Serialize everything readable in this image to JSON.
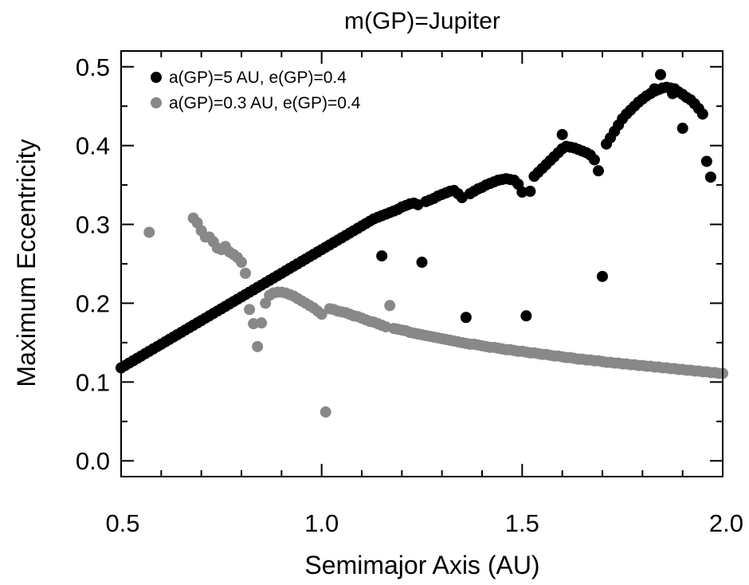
{
  "chart_data": {
    "type": "scatter",
    "title": "m(GP)=Jupiter",
    "xlabel": "Semimajor Axis (AU)",
    "ylabel": "Maximum Eccentricity",
    "xlim": [
      0.5,
      2.0
    ],
    "ylim": [
      -0.02,
      0.52
    ],
    "xticks": [
      0.5,
      1.0,
      1.5,
      2.0
    ],
    "xtick_labels": [
      "0.5",
      "1.0",
      "1.5",
      "2.0"
    ],
    "yticks": [
      0.0,
      0.1,
      0.2,
      0.3,
      0.4,
      0.5
    ],
    "ytick_labels": [
      "0.0",
      "0.1",
      "0.2",
      "0.3",
      "0.4",
      "0.5"
    ],
    "grid": false,
    "legend_position": "top-left",
    "series": [
      {
        "name": "a(GP)=5 AU, e(GP)=0.4",
        "color": "#000000",
        "points": [
          [
            0.5,
            0.118
          ],
          [
            0.51,
            0.121
          ],
          [
            0.52,
            0.124
          ],
          [
            0.53,
            0.127
          ],
          [
            0.54,
            0.13
          ],
          [
            0.55,
            0.133
          ],
          [
            0.56,
            0.136
          ],
          [
            0.57,
            0.139
          ],
          [
            0.58,
            0.142
          ],
          [
            0.59,
            0.145
          ],
          [
            0.6,
            0.148
          ],
          [
            0.61,
            0.151
          ],
          [
            0.62,
            0.154
          ],
          [
            0.63,
            0.157
          ],
          [
            0.64,
            0.16
          ],
          [
            0.65,
            0.163
          ],
          [
            0.66,
            0.166
          ],
          [
            0.67,
            0.169
          ],
          [
            0.68,
            0.172
          ],
          [
            0.69,
            0.175
          ],
          [
            0.7,
            0.178
          ],
          [
            0.71,
            0.181
          ],
          [
            0.72,
            0.184
          ],
          [
            0.73,
            0.187
          ],
          [
            0.74,
            0.19
          ],
          [
            0.75,
            0.193
          ],
          [
            0.76,
            0.196
          ],
          [
            0.77,
            0.199
          ],
          [
            0.78,
            0.202
          ],
          [
            0.79,
            0.205
          ],
          [
            0.8,
            0.208
          ],
          [
            0.81,
            0.211
          ],
          [
            0.82,
            0.214
          ],
          [
            0.83,
            0.217
          ],
          [
            0.84,
            0.22
          ],
          [
            0.85,
            0.223
          ],
          [
            0.86,
            0.226
          ],
          [
            0.87,
            0.229
          ],
          [
            0.88,
            0.232
          ],
          [
            0.89,
            0.235
          ],
          [
            0.9,
            0.238
          ],
          [
            0.91,
            0.241
          ],
          [
            0.92,
            0.244
          ],
          [
            0.93,
            0.247
          ],
          [
            0.94,
            0.25
          ],
          [
            0.95,
            0.253
          ],
          [
            0.96,
            0.256
          ],
          [
            0.97,
            0.259
          ],
          [
            0.98,
            0.262
          ],
          [
            0.99,
            0.265
          ],
          [
            1.0,
            0.268
          ],
          [
            1.01,
            0.271
          ],
          [
            1.02,
            0.274
          ],
          [
            1.03,
            0.277
          ],
          [
            1.04,
            0.28
          ],
          [
            1.05,
            0.283
          ],
          [
            1.06,
            0.286
          ],
          [
            1.07,
            0.289
          ],
          [
            1.08,
            0.292
          ],
          [
            1.09,
            0.295
          ],
          [
            1.1,
            0.298
          ],
          [
            1.11,
            0.301
          ],
          [
            1.12,
            0.304
          ],
          [
            1.13,
            0.307
          ],
          [
            1.14,
            0.309
          ],
          [
            1.15,
            0.311
          ],
          [
            1.16,
            0.313
          ],
          [
            1.17,
            0.315
          ],
          [
            1.18,
            0.317
          ],
          [
            1.19,
            0.319
          ],
          [
            1.2,
            0.322
          ],
          [
            1.21,
            0.324
          ],
          [
            1.22,
            0.326
          ],
          [
            1.23,
            0.327
          ],
          [
            1.24,
            0.325
          ],
          [
            1.26,
            0.329
          ],
          [
            1.27,
            0.331
          ],
          [
            1.28,
            0.333
          ],
          [
            1.29,
            0.336
          ],
          [
            1.3,
            0.338
          ],
          [
            1.31,
            0.34
          ],
          [
            1.32,
            0.342
          ],
          [
            1.33,
            0.343
          ],
          [
            1.34,
            0.339
          ],
          [
            1.35,
            0.334
          ],
          [
            1.37,
            0.339
          ],
          [
            1.38,
            0.342
          ],
          [
            1.39,
            0.345
          ],
          [
            1.4,
            0.347
          ],
          [
            1.41,
            0.35
          ],
          [
            1.42,
            0.352
          ],
          [
            1.43,
            0.354
          ],
          [
            1.44,
            0.356
          ],
          [
            1.45,
            0.357
          ],
          [
            1.46,
            0.358
          ],
          [
            1.47,
            0.357
          ],
          [
            1.48,
            0.356
          ],
          [
            1.49,
            0.351
          ],
          [
            1.5,
            0.341
          ],
          [
            1.52,
            0.342
          ],
          [
            1.53,
            0.361
          ],
          [
            1.54,
            0.366
          ],
          [
            1.55,
            0.371
          ],
          [
            1.56,
            0.376
          ],
          [
            1.57,
            0.381
          ],
          [
            1.58,
            0.386
          ],
          [
            1.59,
            0.391
          ],
          [
            1.6,
            0.396
          ],
          [
            1.61,
            0.399
          ],
          [
            1.62,
            0.398
          ],
          [
            1.63,
            0.397
          ],
          [
            1.64,
            0.395
          ],
          [
            1.65,
            0.393
          ],
          [
            1.66,
            0.391
          ],
          [
            1.67,
            0.388
          ],
          [
            1.68,
            0.382
          ],
          [
            1.69,
            0.368
          ],
          [
            1.71,
            0.402
          ],
          [
            1.72,
            0.41
          ],
          [
            1.73,
            0.418
          ],
          [
            1.74,
            0.426
          ],
          [
            1.75,
            0.434
          ],
          [
            1.76,
            0.44
          ],
          [
            1.77,
            0.445
          ],
          [
            1.78,
            0.45
          ],
          [
            1.79,
            0.455
          ],
          [
            1.8,
            0.459
          ],
          [
            1.81,
            0.463
          ],
          [
            1.82,
            0.466
          ],
          [
            1.83,
            0.469
          ],
          [
            1.84,
            0.471
          ],
          [
            1.85,
            0.473
          ],
          [
            1.86,
            0.474
          ],
          [
            1.87,
            0.473
          ],
          [
            1.88,
            0.472
          ],
          [
            1.89,
            0.468
          ],
          [
            1.9,
            0.465
          ],
          [
            1.91,
            0.461
          ],
          [
            1.92,
            0.458
          ],
          [
            1.93,
            0.453
          ],
          [
            1.94,
            0.447
          ],
          [
            1.95,
            0.44
          ],
          [
            1.96,
            0.38
          ],
          [
            1.97,
            0.36
          ],
          [
            1.15,
            0.26
          ],
          [
            1.25,
            0.252
          ],
          [
            1.36,
            0.182
          ],
          [
            1.51,
            0.184
          ],
          [
            1.6,
            0.414
          ],
          [
            1.7,
            0.234
          ],
          [
            1.83,
            0.472
          ],
          [
            1.845,
            0.49
          ],
          [
            1.875,
            0.466
          ],
          [
            1.9,
            0.422
          ]
        ]
      },
      {
        "name": "a(GP)=0.3 AU, e(GP)=0.4",
        "color": "#888888",
        "points": [
          [
            0.57,
            0.29
          ],
          [
            0.68,
            0.308
          ],
          [
            0.69,
            0.302
          ],
          [
            0.7,
            0.292
          ],
          [
            0.71,
            0.284
          ],
          [
            0.72,
            0.284
          ],
          [
            0.73,
            0.278
          ],
          [
            0.74,
            0.27
          ],
          [
            0.75,
            0.268
          ],
          [
            0.76,
            0.272
          ],
          [
            0.77,
            0.265
          ],
          [
            0.78,
            0.262
          ],
          [
            0.79,
            0.258
          ],
          [
            0.8,
            0.252
          ],
          [
            0.81,
            0.238
          ],
          [
            0.82,
            0.192
          ],
          [
            0.83,
            0.174
          ],
          [
            0.84,
            0.145
          ],
          [
            0.85,
            0.175
          ],
          [
            0.86,
            0.2
          ],
          [
            0.87,
            0.21
          ],
          [
            0.88,
            0.213
          ],
          [
            0.89,
            0.214
          ],
          [
            0.9,
            0.214
          ],
          [
            0.91,
            0.213
          ],
          [
            0.92,
            0.211
          ],
          [
            0.93,
            0.209
          ],
          [
            0.94,
            0.206
          ],
          [
            0.95,
            0.203
          ],
          [
            0.96,
            0.2
          ],
          [
            0.97,
            0.197
          ],
          [
            0.98,
            0.194
          ],
          [
            0.99,
            0.19
          ],
          [
            1.0,
            0.186
          ],
          [
            1.01,
            0.062
          ],
          [
            1.02,
            0.193
          ],
          [
            1.03,
            0.192
          ],
          [
            1.04,
            0.19
          ],
          [
            1.05,
            0.189
          ],
          [
            1.06,
            0.188
          ],
          [
            1.07,
            0.186
          ],
          [
            1.08,
            0.184
          ],
          [
            1.09,
            0.183
          ],
          [
            1.1,
            0.181
          ],
          [
            1.11,
            0.179
          ],
          [
            1.12,
            0.177
          ],
          [
            1.13,
            0.176
          ],
          [
            1.14,
            0.174
          ],
          [
            1.15,
            0.172
          ],
          [
            1.16,
            0.17
          ],
          [
            1.17,
            0.197
          ],
          [
            1.18,
            0.168
          ],
          [
            1.19,
            0.167
          ],
          [
            1.2,
            0.166
          ],
          [
            1.21,
            0.165
          ],
          [
            1.22,
            0.163
          ],
          [
            1.23,
            0.162
          ],
          [
            1.24,
            0.161
          ],
          [
            1.25,
            0.16
          ],
          [
            1.26,
            0.159
          ],
          [
            1.27,
            0.158
          ],
          [
            1.28,
            0.157
          ],
          [
            1.29,
            0.156
          ],
          [
            1.3,
            0.155
          ],
          [
            1.31,
            0.154
          ],
          [
            1.32,
            0.153
          ],
          [
            1.33,
            0.152
          ],
          [
            1.34,
            0.151
          ],
          [
            1.35,
            0.15
          ],
          [
            1.36,
            0.149
          ],
          [
            1.37,
            0.148
          ],
          [
            1.38,
            0.148
          ],
          [
            1.39,
            0.147
          ],
          [
            1.4,
            0.146
          ],
          [
            1.41,
            0.145
          ],
          [
            1.42,
            0.144
          ],
          [
            1.43,
            0.144
          ],
          [
            1.44,
            0.143
          ],
          [
            1.45,
            0.142
          ],
          [
            1.46,
            0.141
          ],
          [
            1.47,
            0.141
          ],
          [
            1.48,
            0.14
          ],
          [
            1.49,
            0.139
          ],
          [
            1.5,
            0.139
          ],
          [
            1.51,
            0.138
          ],
          [
            1.52,
            0.137
          ],
          [
            1.53,
            0.137
          ],
          [
            1.54,
            0.136
          ],
          [
            1.55,
            0.135
          ],
          [
            1.56,
            0.135
          ],
          [
            1.57,
            0.134
          ],
          [
            1.58,
            0.133
          ],
          [
            1.59,
            0.133
          ],
          [
            1.6,
            0.132
          ],
          [
            1.61,
            0.131
          ],
          [
            1.62,
            0.131
          ],
          [
            1.63,
            0.13
          ],
          [
            1.64,
            0.129
          ],
          [
            1.65,
            0.129
          ],
          [
            1.66,
            0.128
          ],
          [
            1.67,
            0.128
          ],
          [
            1.68,
            0.127
          ],
          [
            1.69,
            0.127
          ],
          [
            1.7,
            0.126
          ],
          [
            1.71,
            0.125
          ],
          [
            1.72,
            0.125
          ],
          [
            1.73,
            0.124
          ],
          [
            1.74,
            0.124
          ],
          [
            1.75,
            0.123
          ],
          [
            1.76,
            0.123
          ],
          [
            1.77,
            0.122
          ],
          [
            1.78,
            0.122
          ],
          [
            1.79,
            0.121
          ],
          [
            1.8,
            0.121
          ],
          [
            1.81,
            0.12
          ],
          [
            1.82,
            0.12
          ],
          [
            1.83,
            0.119
          ],
          [
            1.84,
            0.119
          ],
          [
            1.85,
            0.118
          ],
          [
            1.86,
            0.118
          ],
          [
            1.87,
            0.117
          ],
          [
            1.88,
            0.117
          ],
          [
            1.89,
            0.116
          ],
          [
            1.9,
            0.116
          ],
          [
            1.91,
            0.115
          ],
          [
            1.92,
            0.115
          ],
          [
            1.93,
            0.114
          ],
          [
            1.94,
            0.114
          ],
          [
            1.95,
            0.113
          ],
          [
            1.96,
            0.113
          ],
          [
            1.97,
            0.112
          ],
          [
            1.98,
            0.112
          ],
          [
            1.99,
            0.111
          ],
          [
            2.0,
            0.111
          ]
        ]
      }
    ]
  }
}
